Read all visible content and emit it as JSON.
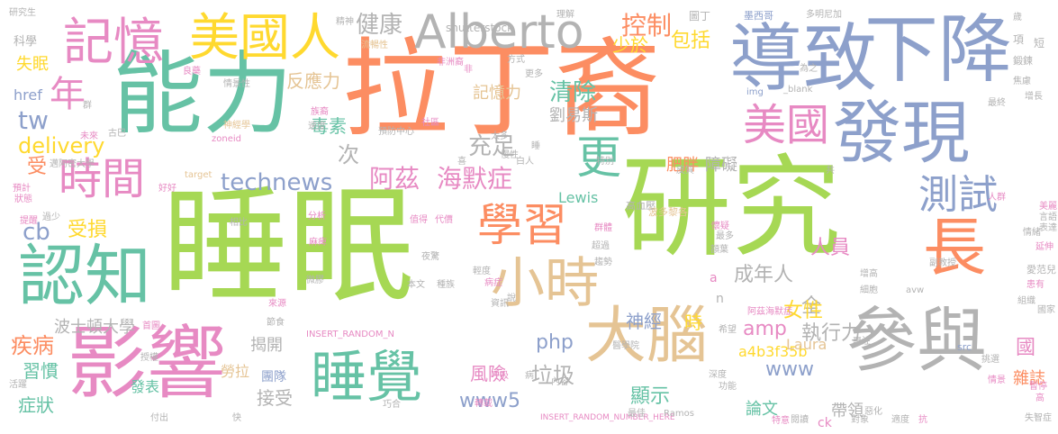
{
  "palette": {
    "green": "#a6d854",
    "orange": "#fc8d62",
    "blue": "#8da0cb",
    "teal": "#66c2a5",
    "pink": "#e78ac3",
    "yellow": "#ffd92f",
    "tan": "#e5c494",
    "gray": "#b3b3b3"
  },
  "words": [
    {
      "t": "睡眠",
      "c": "green"
    },
    {
      "t": "研究",
      "c": "green"
    },
    {
      "t": "拉丁裔",
      "c": "orange"
    },
    {
      "t": "能力",
      "c": "teal"
    },
    {
      "t": "導致",
      "c": "blue"
    },
    {
      "t": "下降",
      "c": "blue"
    },
    {
      "t": "影響",
      "c": "pink"
    },
    {
      "t": "參與",
      "c": "gray"
    },
    {
      "t": "發現",
      "c": "blue"
    },
    {
      "t": "認知",
      "c": "teal"
    },
    {
      "t": "睡覺",
      "c": "teal"
    },
    {
      "t": "大腦",
      "c": "tan"
    },
    {
      "t": "小時",
      "c": "tan"
    },
    {
      "t": "記憶",
      "c": "pink"
    },
    {
      "t": "美國人",
      "c": "yellow"
    },
    {
      "t": "Alberto",
      "c": "gray"
    },
    {
      "t": "時間",
      "c": "pink"
    },
    {
      "t": "學習",
      "c": "orange"
    },
    {
      "t": "長",
      "c": "orange"
    },
    {
      "t": "測試",
      "c": "blue"
    },
    {
      "t": "更",
      "c": "teal"
    },
    {
      "t": "年",
      "c": "pink"
    },
    {
      "t": "美國",
      "c": "pink"
    },
    {
      "t": "健康",
      "c": "gray"
    },
    {
      "t": "控制",
      "c": "orange"
    },
    {
      "t": "阿茲",
      "c": "pink"
    },
    {
      "t": "海默症",
      "c": "pink"
    },
    {
      "t": "technews",
      "c": "blue"
    },
    {
      "t": "delivery",
      "c": "yellow"
    },
    {
      "t": "充足",
      "c": "gray"
    },
    {
      "t": "清除",
      "c": "teal"
    },
    {
      "t": "記憶力",
      "c": "tan"
    },
    {
      "t": "劉易斯",
      "c": "gray"
    },
    {
      "t": "少於",
      "c": "yellow"
    },
    {
      "t": "包括",
      "c": "yellow"
    },
    {
      "t": "反應力",
      "c": "tan"
    },
    {
      "t": "毒素",
      "c": "teal"
    },
    {
      "t": "肥胖",
      "c": "orange"
    },
    {
      "t": "障礙",
      "c": "gray"
    },
    {
      "t": "受損",
      "c": "yellow"
    },
    {
      "t": "cb",
      "c": "blue"
    },
    {
      "t": "tw",
      "c": "blue"
    },
    {
      "t": "受",
      "c": "orange"
    },
    {
      "t": "次",
      "c": "gray"
    },
    {
      "t": "人員",
      "c": "pink"
    },
    {
      "t": "成年人",
      "c": "gray"
    },
    {
      "t": "全",
      "c": "gray"
    },
    {
      "t": "女性",
      "c": "yellow"
    },
    {
      "t": "執行力",
      "c": "gray"
    },
    {
      "t": "神經",
      "c": "blue"
    },
    {
      "t": "時",
      "c": "yellow"
    },
    {
      "t": "amp",
      "c": "pink"
    },
    {
      "t": "php",
      "c": "blue"
    },
    {
      "t": "www",
      "c": "blue"
    },
    {
      "t": "風險",
      "c": "pink"
    },
    {
      "t": "顯示",
      "c": "teal"
    },
    {
      "t": "垃圾",
      "c": "gray"
    },
    {
      "t": "www5",
      "c": "blue"
    },
    {
      "t": "a4b3f35b",
      "c": "yellow"
    },
    {
      "t": "疾病",
      "c": "orange"
    },
    {
      "t": "習慣",
      "c": "teal"
    },
    {
      "t": "症狀",
      "c": "teal"
    },
    {
      "t": "波士頓大學",
      "c": "gray"
    },
    {
      "t": "揭開",
      "c": "gray"
    },
    {
      "t": "接受",
      "c": "gray"
    },
    {
      "t": "團隊",
      "c": "blue"
    },
    {
      "t": "發表",
      "c": "teal"
    },
    {
      "t": "勞拉",
      "c": "tan"
    },
    {
      "t": "Laura",
      "c": "tan"
    },
    {
      "t": "Lewis",
      "c": "teal"
    },
    {
      "t": "論文",
      "c": "teal"
    },
    {
      "t": "帶領",
      "c": "gray"
    },
    {
      "t": "國",
      "c": "pink"
    },
    {
      "t": "雜誌",
      "c": "orange"
    },
    {
      "t": "失眠",
      "c": "yellow"
    },
    {
      "t": "科學",
      "c": "gray"
    },
    {
      "t": "href",
      "c": "blue"
    },
    {
      "t": "shutterstock",
      "c": "gray"
    },
    {
      "t": "INSERT_RANDOM_N",
      "c": "pink"
    },
    {
      "t": "INSERT_RANDOM_NUMBER_HERE",
      "c": "pink"
    },
    {
      "t": "研究生",
      "c": "gray"
    },
    {
      "t": "精神",
      "c": "gray"
    },
    {
      "t": "流暢性",
      "c": "tan"
    },
    {
      "t": "非洲裔",
      "c": "pink"
    },
    {
      "t": "方式",
      "c": "gray"
    },
    {
      "t": "理解",
      "c": "gray"
    },
    {
      "t": "圖丁",
      "c": "gray"
    },
    {
      "t": "墨西哥",
      "c": "blue"
    },
    {
      "t": "多明尼加",
      "c": "gray"
    },
    {
      "t": "歲",
      "c": "gray"
    },
    {
      "t": "項",
      "c": "gray"
    },
    {
      "t": "短",
      "c": "gray"
    },
    {
      "t": "鍛鍊",
      "c": "gray"
    },
    {
      "t": "焦慮",
      "c": "gray"
    },
    {
      "t": "為之",
      "c": "gray"
    },
    {
      "t": "_blank",
      "c": "gray"
    },
    {
      "t": "img",
      "c": "blue"
    },
    {
      "t": "最終",
      "c": "gray"
    },
    {
      "t": "增長",
      "c": "gray"
    },
    {
      "t": "zoneid",
      "c": "pink"
    },
    {
      "t": "target",
      "c": "tan"
    },
    {
      "t": "Ramos",
      "c": "gray"
    },
    {
      "t": "src",
      "c": "blue"
    },
    {
      "t": "avw",
      "c": "gray"
    },
    {
      "t": "a",
      "c": "pink"
    },
    {
      "t": "n",
      "c": "gray"
    },
    {
      "t": "ck",
      "c": "pink"
    },
    {
      "t": "高血壓",
      "c": "gray"
    },
    {
      "t": "波多黎各",
      "c": "tan"
    },
    {
      "t": "人群",
      "c": "pink"
    },
    {
      "t": "美麗",
      "c": "pink"
    },
    {
      "t": "言語",
      "c": "gray"
    },
    {
      "t": "表達",
      "c": "gray"
    },
    {
      "t": "情緒",
      "c": "gray"
    },
    {
      "t": "延伸",
      "c": "pink"
    },
    {
      "t": "愛范兒",
      "c": "gray"
    },
    {
      "t": "副教授",
      "c": "gray"
    },
    {
      "t": "患有",
      "c": "pink"
    },
    {
      "t": "失智症",
      "c": "gray"
    },
    {
      "t": "惡化",
      "c": "gray"
    },
    {
      "t": "對象",
      "c": "gray"
    },
    {
      "t": "適度",
      "c": "gray"
    },
    {
      "t": "抗",
      "c": "pink"
    },
    {
      "t": "高",
      "c": "pink"
    },
    {
      "t": "最佳",
      "c": "gray"
    },
    {
      "t": "預防中心",
      "c": "gray"
    },
    {
      "t": "速度",
      "c": "gray"
    },
    {
      "t": "族裔",
      "c": "pink"
    },
    {
      "t": "社區",
      "c": "pink"
    },
    {
      "t": "更多",
      "c": "gray"
    },
    {
      "t": "情景性",
      "c": "gray"
    },
    {
      "t": "神經學",
      "c": "tan"
    },
    {
      "t": "古巴",
      "c": "gray"
    },
    {
      "t": "邁阿密大學",
      "c": "gray"
    },
    {
      "t": "預計",
      "c": "pink"
    },
    {
      "t": "狀態",
      "c": "pink"
    },
    {
      "t": "好好",
      "c": "pink"
    },
    {
      "t": "過少",
      "c": "gray"
    },
    {
      "t": "提醒",
      "c": "pink"
    },
    {
      "t": "分析",
      "c": "pink"
    },
    {
      "t": "麻痺",
      "c": "pink"
    },
    {
      "t": "值得",
      "c": "pink"
    },
    {
      "t": "代價",
      "c": "pink"
    },
    {
      "t": "群體",
      "c": "pink"
    },
    {
      "t": "超過",
      "c": "gray"
    },
    {
      "t": "夜驚",
      "c": "gray"
    },
    {
      "t": "輕度",
      "c": "gray"
    },
    {
      "t": "病症",
      "c": "pink"
    },
    {
      "t": "說",
      "c": "gray"
    },
    {
      "t": "資訊",
      "c": "gray"
    },
    {
      "t": "本文",
      "c": "gray"
    },
    {
      "t": "種族",
      "c": "gray"
    },
    {
      "t": "趨勢",
      "c": "gray"
    },
    {
      "t": "微膠",
      "c": "gray"
    },
    {
      "t": "來源",
      "c": "pink"
    },
    {
      "t": "節食",
      "c": "gray"
    },
    {
      "t": "首圖",
      "c": "pink"
    },
    {
      "t": "相比",
      "c": "gray"
    },
    {
      "t": "活躍",
      "c": "gray"
    },
    {
      "t": "授權",
      "c": "gray"
    },
    {
      "t": "付出",
      "c": "gray"
    },
    {
      "t": "快",
      "c": "gray"
    },
    {
      "t": "巧合",
      "c": "gray"
    },
    {
      "t": "轉載",
      "c": "pink"
    },
    {
      "t": "呼吸",
      "c": "pink"
    },
    {
      "t": "病",
      "c": "gray"
    },
    {
      "t": "內容",
      "c": "gray"
    },
    {
      "t": "醫學院",
      "c": "gray"
    },
    {
      "t": "深度",
      "c": "gray"
    },
    {
      "t": "功能",
      "c": "gray"
    },
    {
      "t": "專注",
      "c": "gray"
    },
    {
      "t": "挑選",
      "c": "gray"
    },
    {
      "t": "情景",
      "c": "pink"
    },
    {
      "t": "暫停",
      "c": "pink"
    },
    {
      "t": "組織",
      "c": "gray"
    },
    {
      "t": "國家",
      "c": "gray"
    },
    {
      "t": "增高",
      "c": "gray"
    },
    {
      "t": "細胞",
      "c": "gray"
    },
    {
      "t": "阿茲海默症",
      "c": "pink"
    },
    {
      "t": "希望",
      "c": "gray"
    },
    {
      "t": "最多",
      "c": "gray"
    },
    {
      "t": "額葉",
      "c": "gray"
    },
    {
      "t": "懷疑",
      "c": "pink"
    },
    {
      "t": "特意",
      "c": "pink"
    },
    {
      "t": "睡",
      "c": "gray"
    },
    {
      "t": "白人",
      "c": "gray"
    },
    {
      "t": "特別",
      "c": "gray"
    },
    {
      "t": "皮質",
      "c": "gray"
    },
    {
      "t": "共",
      "c": "gray"
    },
    {
      "t": "喜",
      "c": "gray"
    },
    {
      "t": "慢性",
      "c": "gray"
    },
    {
      "t": "太多",
      "c": "gray"
    },
    {
      "t": "群",
      "c": "gray"
    },
    {
      "t": "未來",
      "c": "pink"
    },
    {
      "t": "良藥",
      "c": "pink"
    },
    {
      "t": "閱讀",
      "c": "gray"
    },
    {
      "t": "非",
      "c": "pink"
    }
  ]
}
